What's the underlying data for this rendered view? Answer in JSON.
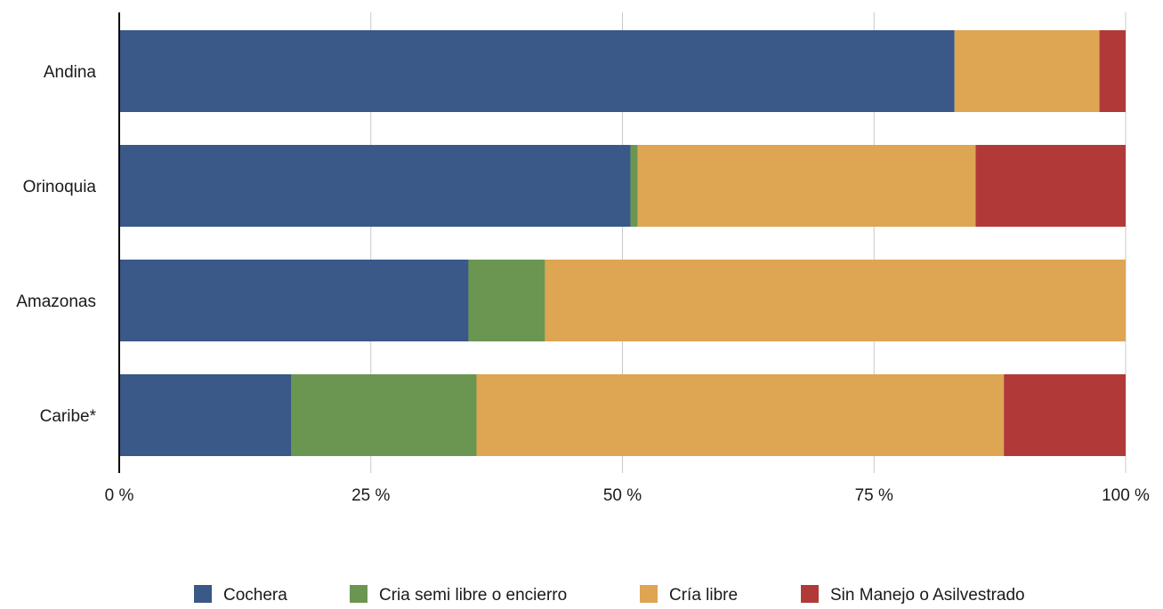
{
  "chart_data": {
    "type": "bar",
    "orientation": "horizontal",
    "stacked": true,
    "categories": [
      "Andina",
      "Orinoquia",
      "Amazonas",
      "Caribe*"
    ],
    "series": [
      {
        "name": "Cochera",
        "color": "#3A5888",
        "values": [
          83.0,
          50.8,
          34.7,
          17.1
        ]
      },
      {
        "name": "Cria semi libre o encierro",
        "color": "#6A9652",
        "values": [
          0.0,
          0.7,
          7.6,
          18.4
        ]
      },
      {
        "name": "Cría libre",
        "color": "#DEA552",
        "values": [
          14.4,
          33.6,
          57.7,
          52.4
        ]
      },
      {
        "name": "Sin Manejo o Asilvestrado",
        "color": "#B13A38",
        "values": [
          2.6,
          14.9,
          0.0,
          12.1
        ]
      }
    ],
    "xlim": [
      0,
      100
    ],
    "xticks": [
      0,
      25,
      50,
      75,
      100
    ],
    "tick_labels": [
      "0 %",
      "25 %",
      "50 %",
      "75 %",
      "100 %"
    ],
    "grid": "vertical",
    "legend_position": "bottom"
  }
}
